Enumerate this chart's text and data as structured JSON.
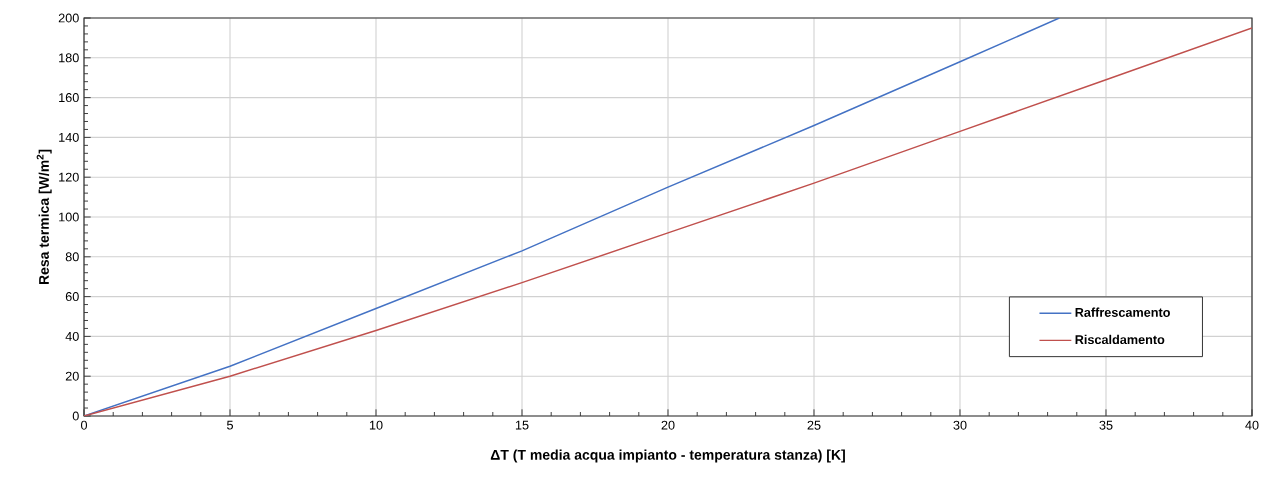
{
  "chart_data": {
    "type": "line",
    "xlabel": "ΔT (T media acqua impianto - temperatura stanza) [K]",
    "ylabel": "Resa termica [W/m$^{2}$]",
    "xlim": [
      0,
      40
    ],
    "xticks": [
      0,
      5,
      10,
      15,
      20,
      25,
      30,
      35,
      40
    ],
    "ylim": [
      0,
      200
    ],
    "yticks": [
      0,
      20,
      40,
      60,
      80,
      100,
      120,
      140,
      160,
      180,
      200
    ],
    "grid": true,
    "legend": "bottom right",
    "marker": "none",
    "line_style": "solid",
    "series": [
      {
        "name": "Raffrescamento",
        "color": "#4472c4",
        "x": [
          0,
          5,
          10,
          15,
          20,
          25,
          30,
          33.4
        ],
        "values": [
          0,
          25,
          54,
          83,
          115,
          146,
          178,
          200
        ]
      },
      {
        "name": "Riscaldamento",
        "color": "#c0504d",
        "x": [
          0,
          5,
          10,
          15,
          20,
          25,
          30,
          35,
          40
        ],
        "values": [
          0,
          20,
          43,
          67,
          92,
          117,
          143,
          169,
          195
        ]
      }
    ]
  }
}
